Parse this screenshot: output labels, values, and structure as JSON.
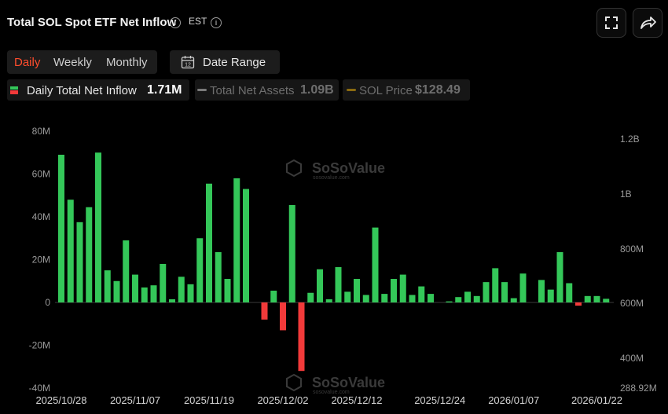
{
  "header": {
    "title": "Total SOL Spot ETF Net Inflow",
    "timezone": "EST"
  },
  "tabs": [
    "Daily",
    "Weekly",
    "Monthly"
  ],
  "active_tab": "Daily",
  "date_range": {
    "label": "Date Range",
    "icon_text": "12"
  },
  "legend": [
    {
      "label": "Daily Total Net Inflow",
      "value": "1.71M",
      "active": true
    },
    {
      "label": "Total Net Assets",
      "value": "1.09B",
      "active": false
    },
    {
      "label": "SOL Price",
      "value": "$128.49",
      "active": false
    }
  ],
  "colors": {
    "positive": "#34c759",
    "negative": "#f23a3a",
    "active_tab": "#ff4d2d",
    "background": "#000000"
  },
  "watermark": {
    "brand": "SoSoValue",
    "site": "sosovalue.com"
  },
  "chart_data": {
    "type": "bar",
    "title": "Total SOL Spot ETF Net Inflow",
    "y_left": {
      "ticks": [
        "80M",
        "60M",
        "40M",
        "20M",
        "0",
        "-20M",
        "-40M"
      ],
      "range": [
        -40,
        80
      ],
      "unit": "M"
    },
    "y_right": {
      "ticks": [
        "1.2B",
        "1B",
        "800M",
        "600M",
        "400M",
        "288.92M"
      ]
    },
    "x_labels": [
      "2025/10/28",
      "2025/11/07",
      "2025/11/19",
      "2025/12/02",
      "2025/12/12",
      "2025/12/24",
      "2026/01/07",
      "2026/01/22"
    ],
    "x_label_index": [
      0,
      8,
      16,
      24,
      32,
      41,
      49,
      58
    ],
    "series": [
      {
        "values": [
          69,
          48,
          37.5,
          44.5,
          70,
          15,
          10,
          29,
          13,
          7,
          8,
          18,
          1.5,
          12,
          8.5,
          30,
          55.5,
          23.5,
          11,
          58,
          53,
          0,
          -8,
          5.5,
          -13,
          45.5,
          -32,
          4.5,
          15.5,
          1.5,
          16.5,
          5,
          11,
          3.5,
          35,
          4,
          11,
          13,
          3.5,
          7.5,
          4,
          0,
          0.5,
          2.5,
          5,
          3,
          9.5,
          16,
          9.5,
          2,
          13.5,
          0,
          10.5,
          6,
          23.5,
          9,
          -1.5,
          3,
          3,
          1.71
        ]
      }
    ],
    "grid": false
  }
}
